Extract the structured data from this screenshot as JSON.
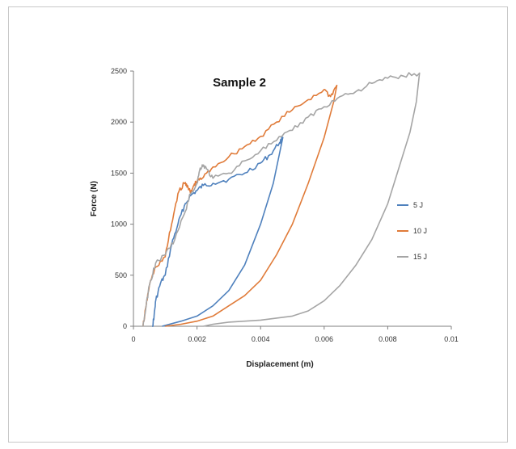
{
  "chart_data": {
    "type": "line",
    "title": "Sample 2",
    "xlabel": "Displacement (m)",
    "ylabel": "Force  (N)",
    "xlim": [
      0,
      0.01
    ],
    "ylim": [
      0,
      2500
    ],
    "x_ticks": [
      0,
      0.002,
      0.004,
      0.006,
      0.008,
      0.01
    ],
    "x_tick_labels": [
      "0",
      "0.002",
      "0.004",
      "0.006",
      "0.008",
      "0.01"
    ],
    "y_ticks": [
      0,
      500,
      1000,
      1500,
      2000,
      2500
    ],
    "y_tick_labels": [
      "0",
      "500",
      "1000",
      "1500",
      "2000",
      "2500"
    ],
    "grid": false,
    "legend": "right",
    "series": [
      {
        "name": "5 J",
        "color": "#4f81bd",
        "loading": [
          [
            0.0006,
            0
          ],
          [
            0.00065,
            100
          ],
          [
            0.0007,
            250
          ],
          [
            0.00085,
            420
          ],
          [
            0.001,
            500
          ],
          [
            0.0012,
            800
          ],
          [
            0.0014,
            1000
          ],
          [
            0.0016,
            1180
          ],
          [
            0.0018,
            1280
          ],
          [
            0.002,
            1330
          ],
          [
            0.0022,
            1380
          ],
          [
            0.0025,
            1400
          ],
          [
            0.003,
            1440
          ],
          [
            0.0035,
            1500
          ],
          [
            0.004,
            1600
          ],
          [
            0.0043,
            1680
          ],
          [
            0.0046,
            1800
          ],
          [
            0.0047,
            1850
          ]
        ],
        "unloading": [
          [
            0.0047,
            1850
          ],
          [
            0.0046,
            1700
          ],
          [
            0.0044,
            1400
          ],
          [
            0.004,
            1000
          ],
          [
            0.0035,
            600
          ],
          [
            0.003,
            350
          ],
          [
            0.0025,
            200
          ],
          [
            0.002,
            100
          ],
          [
            0.0015,
            50
          ],
          [
            0.0009,
            0
          ]
        ]
      },
      {
        "name": "10 J",
        "color": "#e07b39",
        "loading": [
          [
            0.0003,
            0
          ],
          [
            0.0004,
            200
          ],
          [
            0.0005,
            400
          ],
          [
            0.0007,
            580
          ],
          [
            0.001,
            680
          ],
          [
            0.0012,
            1000
          ],
          [
            0.0014,
            1300
          ],
          [
            0.0016,
            1400
          ],
          [
            0.0017,
            1380
          ],
          [
            0.0018,
            1300
          ],
          [
            0.0019,
            1380
          ],
          [
            0.002,
            1420
          ],
          [
            0.0022,
            1460
          ],
          [
            0.0025,
            1560
          ],
          [
            0.003,
            1660
          ],
          [
            0.0035,
            1760
          ],
          [
            0.004,
            1860
          ],
          [
            0.0045,
            2000
          ],
          [
            0.005,
            2120
          ],
          [
            0.0055,
            2220
          ],
          [
            0.006,
            2320
          ],
          [
            0.0062,
            2250
          ],
          [
            0.0064,
            2360
          ]
        ],
        "unloading": [
          [
            0.0064,
            2360
          ],
          [
            0.0063,
            2200
          ],
          [
            0.006,
            1850
          ],
          [
            0.0055,
            1400
          ],
          [
            0.005,
            1000
          ],
          [
            0.0045,
            700
          ],
          [
            0.004,
            450
          ],
          [
            0.0035,
            300
          ],
          [
            0.003,
            200
          ],
          [
            0.0025,
            100
          ],
          [
            0.002,
            50
          ],
          [
            0.0015,
            20
          ],
          [
            0.001,
            0
          ]
        ]
      },
      {
        "name": "15 J",
        "color": "#a5a5a5",
        "loading": [
          [
            0.0003,
            0
          ],
          [
            0.0004,
            200
          ],
          [
            0.0005,
            400
          ],
          [
            0.0007,
            620
          ],
          [
            0.001,
            700
          ],
          [
            0.0013,
            850
          ],
          [
            0.0016,
            1100
          ],
          [
            0.0018,
            1300
          ],
          [
            0.002,
            1400
          ],
          [
            0.0021,
            1550
          ],
          [
            0.0022,
            1580
          ],
          [
            0.0023,
            1540
          ],
          [
            0.0025,
            1450
          ],
          [
            0.003,
            1500
          ],
          [
            0.0035,
            1620
          ],
          [
            0.004,
            1720
          ],
          [
            0.0045,
            1820
          ],
          [
            0.005,
            1920
          ],
          [
            0.0055,
            2050
          ],
          [
            0.006,
            2150
          ],
          [
            0.0065,
            2250
          ],
          [
            0.007,
            2300
          ],
          [
            0.0075,
            2380
          ],
          [
            0.008,
            2430
          ],
          [
            0.0085,
            2450
          ],
          [
            0.009,
            2480
          ]
        ],
        "unloading": [
          [
            0.009,
            2480
          ],
          [
            0.0089,
            2200
          ],
          [
            0.0087,
            1900
          ],
          [
            0.0083,
            1500
          ],
          [
            0.008,
            1200
          ],
          [
            0.0075,
            850
          ],
          [
            0.007,
            600
          ],
          [
            0.0065,
            400
          ],
          [
            0.006,
            250
          ],
          [
            0.0055,
            150
          ],
          [
            0.005,
            100
          ],
          [
            0.004,
            60
          ],
          [
            0.003,
            40
          ],
          [
            0.0025,
            20
          ],
          [
            0.0022,
            0
          ]
        ]
      }
    ]
  }
}
